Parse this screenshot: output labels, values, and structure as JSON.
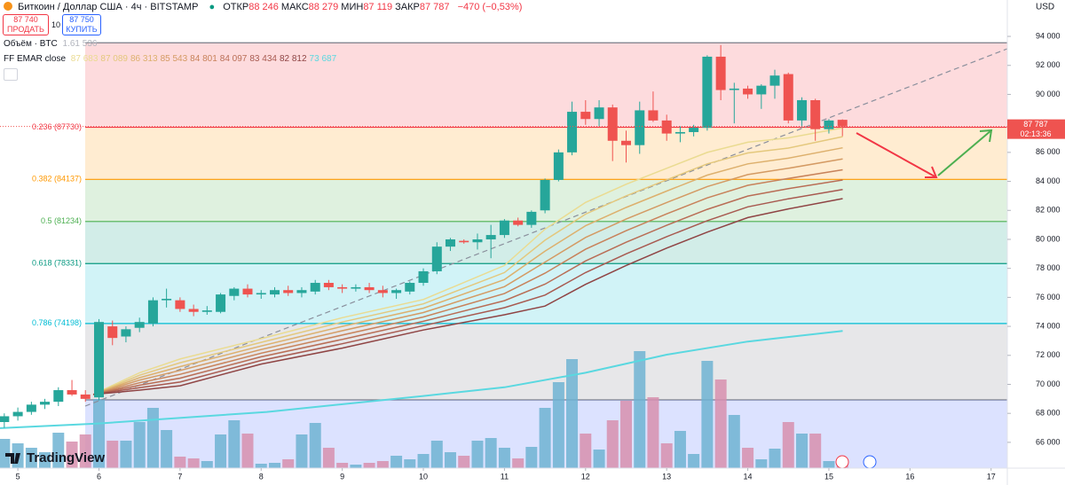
{
  "chart_data": {
    "type": "candlestick",
    "title": "Биткоин / Доллар США · 4ч · BITSTAMP",
    "ohlc_header": [
      {
        "name": "ОТКР",
        "text": "88 246"
      },
      {
        "name": "МАКС",
        "text": "88 279"
      },
      {
        "name": "МИН",
        "text": "87 119"
      },
      {
        "name": "ЗАКР",
        "text": "87 787"
      }
    ],
    "change": "−470 (−0,53%)",
    "sell": {
      "price": "87 740",
      "label": "ПРОДАТЬ"
    },
    "spread": "10",
    "buy": {
      "price": "87 750",
      "label": "КУПИТЬ"
    },
    "volume_label": "Объём · BTC",
    "volume_value": "1.61 536",
    "ema_label": "FF EMAR close",
    "ema_legend": [
      "87 683",
      "87 089",
      "86 313",
      "85 543",
      "84 801",
      "84 097",
      "83 434",
      "82 812",
      "73 687"
    ],
    "currency": "USD",
    "last_price_label": "87 787",
    "countdown": "02:13:36",
    "logo": "TradingView",
    "up_color": "#26a69a",
    "down_color": "#ef5350",
    "volume_up_color": "#6fb3d2",
    "volume_down_color": "#d78fae",
    "xlim": [
      4.78,
      17.2
    ],
    "xticks": [
      5,
      6,
      7,
      8,
      9,
      10,
      11,
      12,
      13,
      14,
      15,
      16,
      17
    ],
    "ylim": [
      64220,
      96510
    ],
    "yticks": [
      {
        "value": 66000,
        "label": "66 000"
      },
      {
        "value": 68000,
        "label": "68 000"
      },
      {
        "value": 70000,
        "label": "70 000"
      },
      {
        "value": 72000,
        "label": "72 000"
      },
      {
        "value": 74000,
        "label": "74 000"
      },
      {
        "value": 76000,
        "label": "76 000"
      },
      {
        "value": 78000,
        "label": "78 000"
      },
      {
        "value": 80000,
        "label": "80 000"
      },
      {
        "value": 82000,
        "label": "82 000"
      },
      {
        "value": 84000,
        "label": "84 000"
      },
      {
        "value": 86000,
        "label": "86 000"
      },
      {
        "value": 88000,
        "label": "88 000"
      },
      {
        "value": 90000,
        "label": "90 000"
      },
      {
        "value": 92000,
        "label": "92 000"
      },
      {
        "value": 94000,
        "label": "94 000"
      }
    ],
    "vlim": [
      0,
      4000
    ],
    "x": [
      4.833,
      5,
      5.167,
      5.333,
      5.5,
      5.667,
      5.833,
      6,
      6.167,
      6.333,
      6.5,
      6.667,
      6.833,
      7,
      7.167,
      7.333,
      7.5,
      7.667,
      7.833,
      8,
      8.167,
      8.333,
      8.5,
      8.667,
      8.833,
      9,
      9.167,
      9.333,
      9.5,
      9.667,
      9.833,
      10,
      10.167,
      10.333,
      10.5,
      10.667,
      10.833,
      11,
      11.167,
      11.333,
      11.5,
      11.667,
      11.833,
      12,
      12.167,
      12.333,
      12.5,
      12.667,
      12.833,
      13,
      13.167,
      13.333,
      13.5,
      13.667,
      13.833,
      14,
      14.167,
      14.333,
      14.5,
      14.667,
      14.833,
      15,
      15.167
    ],
    "open": [
      67400,
      67800,
      68100,
      68600,
      68800,
      69600,
      69300,
      69100,
      74000,
      73300,
      73900,
      74200,
      75800,
      75800,
      75200,
      75000,
      75000,
      76100,
      76600,
      76200,
      76200,
      76500,
      76300,
      76400,
      77000,
      76700,
      76600,
      76700,
      76500,
      76300,
      76400,
      77000,
      77800,
      79500,
      79900,
      79800,
      80000,
      80300,
      81300,
      81000,
      82000,
      84100,
      86000,
      88800,
      88300,
      89100,
      86800,
      86500,
      88900,
      88200,
      87300,
      87400,
      87700,
      92600,
      90300,
      90400,
      90000,
      90600,
      91400,
      88200,
      89600,
      87600,
      88246
    ],
    "high": [
      68000,
      68400,
      68800,
      69000,
      69800,
      70300,
      69600,
      74500,
      74400,
      74000,
      74600,
      76000,
      76600,
      76000,
      75500,
      75400,
      76300,
      76700,
      76900,
      76500,
      76700,
      76800,
      76700,
      77200,
      77200,
      76900,
      76900,
      77000,
      76800,
      76600,
      77100,
      78000,
      79800,
      80100,
      80000,
      80400,
      81000,
      81400,
      81500,
      82000,
      84200,
      86200,
      89500,
      89600,
      89600,
      89300,
      87500,
      89500,
      90200,
      88600,
      87800,
      87900,
      92700,
      93400,
      90800,
      90600,
      90700,
      91700,
      91500,
      89800,
      89700,
      88300,
      88279
    ],
    "low": [
      67000,
      67500,
      67900,
      68300,
      68500,
      69200,
      68800,
      68900,
      72700,
      72900,
      73600,
      74000,
      75300,
      75000,
      74700,
      74800,
      74900,
      75800,
      76000,
      75900,
      76000,
      76100,
      76000,
      76200,
      76500,
      76300,
      76400,
      76300,
      76000,
      75900,
      76200,
      76800,
      77600,
      79200,
      79700,
      79300,
      78700,
      80100,
      80900,
      80800,
      81800,
      84000,
      85800,
      87900,
      87800,
      85400,
      85300,
      85900,
      88100,
      86800,
      86700,
      87100,
      87500,
      89600,
      88000,
      89700,
      89000,
      89700,
      88000,
      87700,
      86800,
      87300,
      87119
    ],
    "close": [
      67800,
      68100,
      68600,
      68800,
      69600,
      69300,
      69000,
      74300,
      73200,
      73800,
      74300,
      75800,
      75900,
      75200,
      75000,
      75100,
      76200,
      76600,
      76200,
      76300,
      76500,
      76300,
      76500,
      77000,
      76700,
      76600,
      76700,
      76500,
      76300,
      76500,
      77000,
      77800,
      79500,
      80000,
      79800,
      80000,
      80300,
      81300,
      81000,
      81900,
      84100,
      86000,
      88800,
      88300,
      89100,
      86800,
      86500,
      88900,
      88200,
      87300,
      87400,
      87700,
      92600,
      90300,
      90400,
      90000,
      90600,
      91300,
      88200,
      89600,
      87600,
      88200,
      87787
    ],
    "volume": [
      660,
      560,
      460,
      360,
      800,
      600,
      760,
      1560,
      620,
      620,
      1040,
      1360,
      860,
      260,
      220,
      160,
      760,
      1080,
      780,
      100,
      120,
      200,
      760,
      1020,
      460,
      120,
      80,
      120,
      160,
      280,
      200,
      320,
      620,
      360,
      280,
      620,
      680,
      460,
      220,
      480,
      1360,
      1940,
      2460,
      780,
      420,
      1080,
      1520,
      2640,
      1600,
      560,
      840,
      320,
      2420,
      2000,
      1200,
      460,
      200,
      440,
      1040,
      780,
      780,
      160,
      80
    ],
    "ema_x": [
      5.93,
      6.5,
      7,
      8,
      9,
      10,
      11,
      11.5,
      12,
      12.5,
      13,
      13.5,
      14,
      14.5,
      15.17
    ],
    "ema_series": [
      {
        "color": "#eadb91",
        "values": [
          69300,
          70800,
          71750,
          73150,
          74600,
          75850,
          78200,
          80700,
          82550,
          83800,
          84900,
          86000,
          86700,
          87000,
          87683
        ]
      },
      {
        "color": "#e4c87d",
        "values": [
          69300,
          70630,
          71490,
          72900,
          74300,
          75550,
          77710,
          79940,
          81740,
          83000,
          84110,
          85210,
          85960,
          86300,
          87089
        ]
      },
      {
        "color": "#ddb06d",
        "values": [
          69300,
          70460,
          71220,
          72650,
          74000,
          75250,
          77230,
          79190,
          80940,
          82200,
          83330,
          84430,
          85210,
          85600,
          86313
        ]
      },
      {
        "color": "#d49a63",
        "values": [
          69300,
          70290,
          70960,
          72400,
          73700,
          74950,
          76740,
          78430,
          80130,
          81400,
          82540,
          83640,
          84470,
          84900,
          85543
        ]
      },
      {
        "color": "#c8825a",
        "values": [
          69300,
          70110,
          70690,
          72150,
          73400,
          74650,
          76260,
          77670,
          79320,
          80600,
          81760,
          82860,
          83730,
          84200,
          84801
        ]
      },
      {
        "color": "#b96d55",
        "values": [
          69300,
          69940,
          70430,
          71900,
          73100,
          74350,
          75770,
          76910,
          78510,
          79800,
          80970,
          82070,
          82990,
          83500,
          84097
        ]
      },
      {
        "color": "#a85a50",
        "values": [
          69300,
          69770,
          70160,
          71650,
          72800,
          74050,
          75290,
          76160,
          77710,
          79000,
          80190,
          81290,
          82240,
          82800,
          83434
        ]
      },
      {
        "color": "#8f4444",
        "values": [
          69300,
          69600,
          69900,
          71400,
          72500,
          73750,
          74800,
          75400,
          76900,
          78200,
          79400,
          80500,
          81500,
          82100,
          82812
        ]
      },
      {
        "color": "#5ad8e0",
        "x": [
          4.78,
          6,
          8.07,
          10,
          11,
          12,
          13,
          14,
          15.17
        ],
        "values": [
          66980,
          67300,
          68100,
          69200,
          69800,
          70800,
          72050,
          72950,
          73687
        ]
      }
    ],
    "fib_levels": [
      {
        "value": 93560,
        "color": "#787b86"
      },
      {
        "label": "0.236 (87730)",
        "value": 87730,
        "color": "#f23645"
      },
      {
        "label": "0.382 (84137)",
        "value": 84137,
        "color": "#ff9800"
      },
      {
        "label": "0.5 (81234)",
        "value": 81234,
        "color": "#4caf50"
      },
      {
        "label": "0.618 (78331)",
        "value": 78331,
        "color": "#089981"
      },
      {
        "label": "0.786 (74198)",
        "value": 74198,
        "color": "#00bcd4"
      },
      {
        "value": 68930,
        "color": "#787b86"
      }
    ]
  }
}
